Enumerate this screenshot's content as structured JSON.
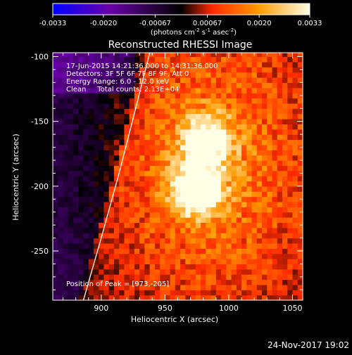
{
  "colorbar": {
    "ticks": [
      "-0.0033",
      "-0.0020",
      "-0.00067",
      "0.00067",
      "0.0020",
      "0.0033"
    ],
    "tick_values": [
      -0.0033,
      -0.002,
      -0.00067,
      0.00067,
      0.002,
      0.0033
    ],
    "range": [
      -0.0033,
      0.0033
    ],
    "units_parts": [
      "(photons cm",
      "-2",
      " s",
      "-1",
      " asec",
      "-2",
      ")"
    ],
    "colormap": [
      "#0000ff",
      "#6a00a8",
      "#000000",
      "#ff2a00",
      "#ff9a00",
      "#ffffe6"
    ]
  },
  "chart_data": {
    "type": "heatmap",
    "title": "Reconstructed RHESSI Image",
    "xlabel": "Heliocentric X (arcsec)",
    "ylabel": "Heliocentric Y (arcsec)",
    "xlim": [
      862,
      1058
    ],
    "ylim": [
      -288,
      -97
    ],
    "x_ticks": [
      900,
      950,
      1000,
      1050
    ],
    "y_ticks": [
      -100,
      -150,
      -200,
      -250
    ],
    "info_lines": [
      "17-Jun-2015 14:21:36.000 to 14:31:36.000",
      "Detectors: 3F 5F 6F 7F 8F 9F, Att 0",
      "Energy Range: 6.0 - 12.0 keV",
      "Clean     Total counts: 2.13E+04"
    ],
    "peak_label": "Position of Peak = [973,-205]",
    "peak": [
      973,
      -205
    ],
    "sources": [
      {
        "x": 973,
        "y": -205,
        "value": 0.0033
      },
      {
        "x": 980,
        "y": -167,
        "value": 0.0028
      }
    ],
    "limb_curve": [
      [
        938,
        -97
      ],
      [
        927,
        -140
      ],
      [
        914,
        -190
      ],
      [
        900,
        -240
      ],
      [
        886,
        -288
      ]
    ]
  },
  "footer": {
    "date": "24-Nov-2017 19:02"
  }
}
